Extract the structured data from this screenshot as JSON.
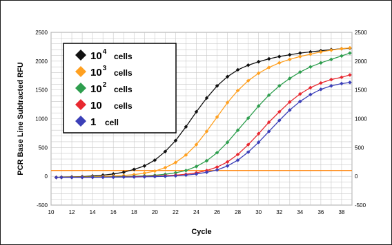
{
  "chart_data": {
    "type": "line",
    "xlabel": "Cycle",
    "ylabel": "PCR Base Line Subtracted RFU",
    "xlim": [
      10,
      39
    ],
    "ylim": [
      -500,
      2500
    ],
    "x_ticks": [
      "10",
      "12",
      "14",
      "16",
      "18",
      "20",
      "22",
      "24",
      "26",
      "28",
      "30",
      "32",
      "34",
      "36",
      "38"
    ],
    "y_ticks": [
      "2500",
      "2000",
      "1500",
      "1000",
      "500",
      "0",
      "-500"
    ],
    "grid": true,
    "legend_position": "top-left",
    "threshold": {
      "value": 100,
      "color": "#ff8c1a"
    },
    "x": [
      10.5,
      11,
      12,
      13,
      14,
      15,
      16,
      17,
      18,
      19,
      20,
      21,
      22,
      23,
      24,
      25,
      26,
      27,
      28,
      29,
      30,
      31,
      32,
      33,
      34,
      35,
      36,
      37,
      38,
      38.8
    ],
    "series": [
      {
        "name_main": "10",
        "name_sup": "4",
        "name_unit": "cells",
        "color": "#111111",
        "values": [
          -20,
          -15,
          -10,
          -5,
          5,
          20,
          40,
          70,
          120,
          180,
          280,
          430,
          620,
          860,
          1120,
          1360,
          1570,
          1730,
          1850,
          1930,
          1990,
          2040,
          2080,
          2110,
          2140,
          2160,
          2180,
          2200,
          2215,
          2225
        ]
      },
      {
        "name_main": "10",
        "name_sup": "3",
        "name_unit": "cells",
        "color": "#ffa020",
        "values": [
          -20,
          -18,
          -15,
          -12,
          -8,
          -3,
          5,
          15,
          30,
          55,
          90,
          150,
          240,
          370,
          550,
          780,
          1030,
          1280,
          1490,
          1660,
          1790,
          1890,
          1970,
          2030,
          2080,
          2120,
          2160,
          2190,
          2215,
          2230
        ]
      },
      {
        "name_main": "10",
        "name_sup": "2",
        "name_unit": "cells",
        "color": "#2e9e4e",
        "values": [
          -20,
          -20,
          -18,
          -16,
          -14,
          -12,
          -8,
          -4,
          0,
          8,
          18,
          35,
          60,
          100,
          170,
          270,
          410,
          590,
          800,
          1010,
          1220,
          1410,
          1570,
          1700,
          1810,
          1900,
          1970,
          2030,
          2090,
          2140
        ]
      },
      {
        "name_main": "10",
        "name_sup": "",
        "name_unit": "cells",
        "color": "#e82830",
        "values": [
          -20,
          -20,
          -19,
          -18,
          -17,
          -15,
          -13,
          -10,
          -7,
          -3,
          3,
          10,
          20,
          35,
          60,
          100,
          160,
          250,
          380,
          550,
          740,
          940,
          1120,
          1290,
          1430,
          1540,
          1620,
          1680,
          1720,
          1760
        ]
      },
      {
        "name_main": "1",
        "name_sup": "",
        "name_unit": "cell",
        "color": "#3c40b8",
        "values": [
          -20,
          -20,
          -20,
          -19,
          -18,
          -17,
          -16,
          -14,
          -12,
          -9,
          -5,
          0,
          8,
          20,
          40,
          70,
          110,
          180,
          280,
          420,
          590,
          780,
          970,
          1150,
          1300,
          1420,
          1510,
          1570,
          1610,
          1630
        ]
      }
    ]
  }
}
